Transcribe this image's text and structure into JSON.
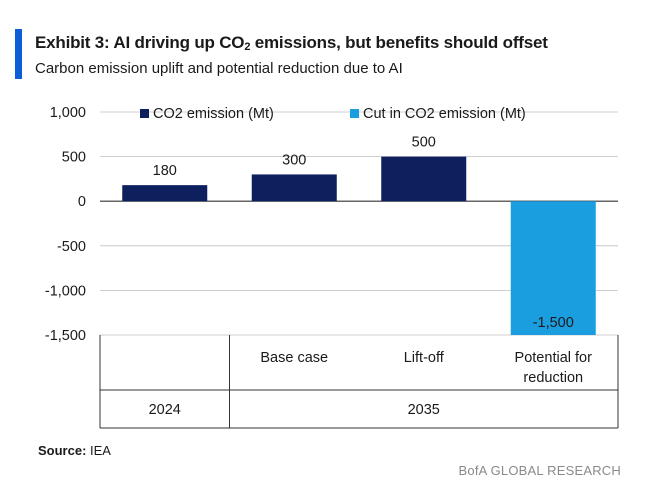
{
  "header": {
    "title_pre": "Exhibit 3: AI driving up CO",
    "title_sub": "2",
    "title_post": " emissions, but benefits should offset",
    "subtitle": "Carbon emission uplift and potential reduction due to AI"
  },
  "chart_data": {
    "type": "bar",
    "title": "Exhibit 3: AI driving up CO2 emissions, but benefits should offset",
    "subtitle": "Carbon emission uplift and potential reduction due to AI",
    "categories": [
      "",
      "Base case",
      "Lift-off",
      "Potential for reduction"
    ],
    "category_lines": [
      [
        ""
      ],
      [
        "Base case"
      ],
      [
        "Lift-off"
      ],
      [
        "Potential for",
        "reduction"
      ]
    ],
    "groups": [
      {
        "label": "2024",
        "categories": [
          0
        ]
      },
      {
        "label": "2035",
        "categories": [
          1,
          2,
          3
        ]
      }
    ],
    "series": [
      {
        "name": "CO2 emission (Mt)",
        "color": "#0d1f5c",
        "values": [
          180,
          300,
          500,
          null
        ]
      },
      {
        "name": "Cut in CO2 emission (Mt)",
        "color": "#1a9ee0",
        "values": [
          null,
          null,
          null,
          -1500
        ]
      }
    ],
    "data_labels": [
      "180",
      "300",
      "500",
      "-1,500"
    ],
    "yticks": [
      1000,
      500,
      0,
      -500,
      -1000,
      -1500
    ],
    "ytick_labels": [
      "1,000",
      "500",
      "0",
      "-500",
      "-1,000",
      "-1,500"
    ],
    "ylim": [
      -1500,
      1000
    ],
    "grid": true,
    "legend_position": "top",
    "xlabel": "",
    "ylabel": ""
  },
  "footer": {
    "source_label": "Source:",
    "source_value": " IEA",
    "credit": "BofA GLOBAL RESEARCH"
  }
}
